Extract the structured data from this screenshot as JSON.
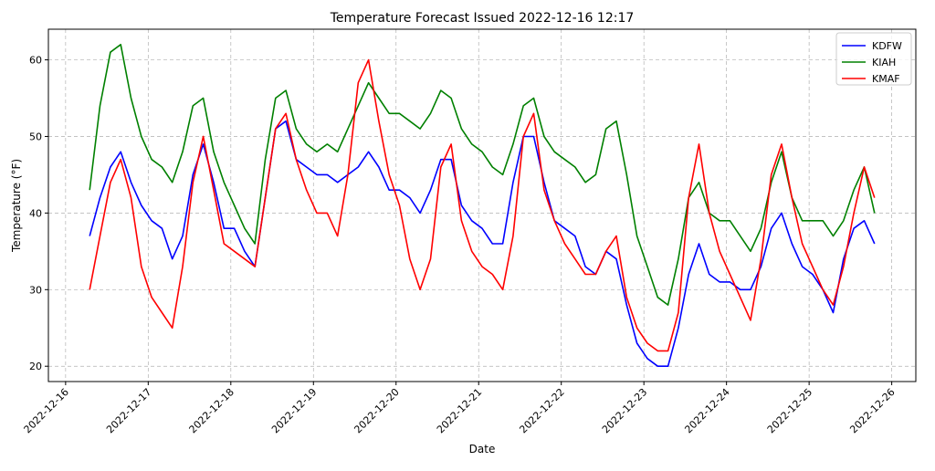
{
  "chart_data": {
    "type": "line",
    "title": "Temperature Forecast Issued 2022-12-16 12:17",
    "xlabel": "Date",
    "ylabel": "Temperature (°F)",
    "ylim": [
      18,
      64
    ],
    "xlim": [
      "2022-12-15T19:00",
      "2022-12-26T07:00"
    ],
    "yticks": [
      20,
      30,
      40,
      50,
      60
    ],
    "xticks": [
      "2022-12-16",
      "2022-12-17",
      "2022-12-18",
      "2022-12-19",
      "2022-12-20",
      "2022-12-21",
      "2022-12-22",
      "2022-12-23",
      "2022-12-24",
      "2022-12-25",
      "2022-12-26"
    ],
    "grid": true,
    "legend_position": "top-right",
    "x_start": "2022-12-16T07:00",
    "x_step_hours": 3,
    "series": [
      {
        "name": "KDFW",
        "color": "#0000ff",
        "values": [
          37,
          42,
          46,
          48,
          44,
          41,
          39,
          38,
          34,
          37,
          45,
          49,
          44,
          38,
          38,
          35,
          33,
          42,
          51,
          52,
          47,
          46,
          45,
          45,
          44,
          45,
          46,
          48,
          46,
          43,
          43,
          42,
          40,
          43,
          47,
          47,
          41,
          39,
          38,
          36,
          36,
          44,
          50,
          50,
          44,
          39,
          38,
          37,
          33,
          32,
          35,
          34,
          28,
          23,
          21,
          20,
          20,
          25,
          32,
          36,
          32,
          31,
          31,
          30,
          30,
          33,
          38,
          40,
          36,
          33,
          32,
          30,
          27,
          34,
          38,
          39,
          36
        ]
      },
      {
        "name": "KIAH",
        "color": "#008000",
        "values": [
          43,
          54,
          61,
          62,
          55,
          50,
          47,
          46,
          44,
          48,
          54,
          55,
          48,
          44,
          41,
          38,
          36,
          47,
          55,
          56,
          51,
          49,
          48,
          49,
          48,
          51,
          54,
          57,
          55,
          53,
          53,
          52,
          51,
          53,
          56,
          55,
          51,
          49,
          48,
          46,
          45,
          49,
          54,
          55,
          50,
          48,
          47,
          46,
          44,
          45,
          51,
          52,
          45,
          37,
          33,
          29,
          28,
          34,
          42,
          44,
          40,
          39,
          39,
          37,
          35,
          38,
          44,
          48,
          42,
          39,
          39,
          39,
          37,
          39,
          43,
          46,
          40
        ]
      },
      {
        "name": "KMAF",
        "color": "#ff0000",
        "values": [
          30,
          37,
          44,
          47,
          42,
          33,
          29,
          27,
          25,
          33,
          44,
          50,
          43,
          36,
          35,
          34,
          33,
          42,
          51,
          53,
          47,
          43,
          40,
          40,
          37,
          45,
          57,
          60,
          52,
          45,
          41,
          34,
          30,
          34,
          46,
          49,
          39,
          35,
          33,
          32,
          30,
          37,
          50,
          53,
          43,
          39,
          36,
          34,
          32,
          32,
          35,
          37,
          29,
          25,
          23,
          22,
          22,
          27,
          42,
          49,
          40,
          35,
          32,
          29,
          26,
          34,
          45,
          49,
          42,
          36,
          33,
          30,
          28,
          33,
          40,
          46,
          42
        ]
      }
    ]
  }
}
